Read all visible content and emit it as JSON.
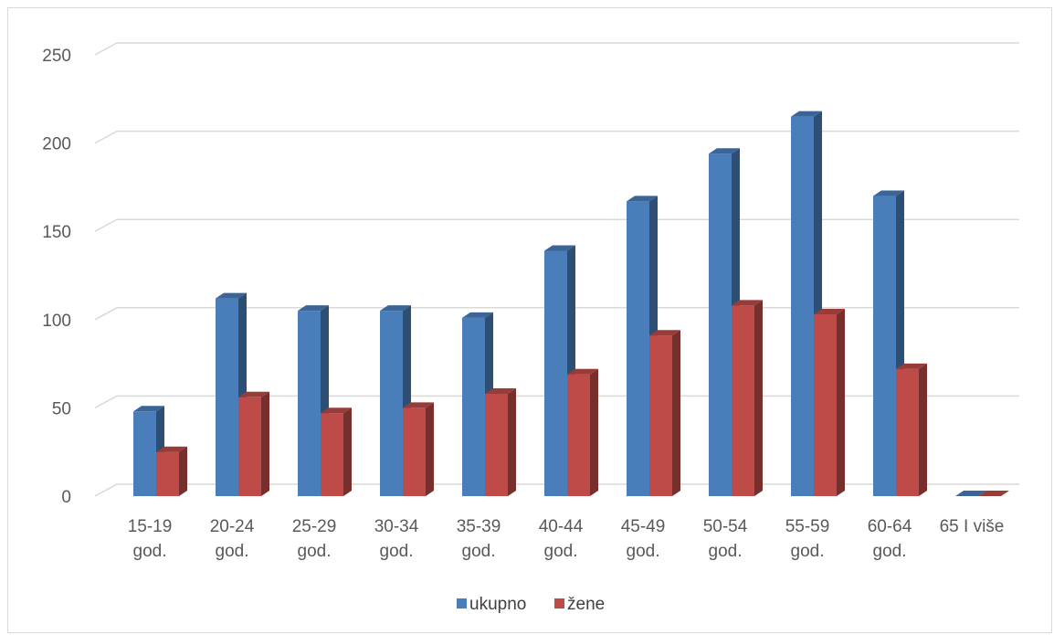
{
  "chart_data": {
    "type": "bar",
    "style": "3d-clustered-column",
    "categories": [
      [
        "15-19",
        "god."
      ],
      [
        "20-24",
        "god."
      ],
      [
        "25-29",
        "god."
      ],
      [
        "30-34",
        "god."
      ],
      [
        "35-39",
        "god."
      ],
      [
        "40-44",
        "god."
      ],
      [
        "45-49",
        "god."
      ],
      [
        "50-54",
        "god."
      ],
      [
        "55-59",
        "god."
      ],
      [
        "60-64",
        "god."
      ],
      [
        "65 I više"
      ]
    ],
    "series": [
      {
        "name": "ukupno",
        "color": "#4a7ebb",
        "values": [
          48,
          112,
          105,
          105,
          101,
          139,
          167,
          194,
          215,
          170,
          0
        ]
      },
      {
        "name": "žene",
        "color": "#be4b48",
        "values": [
          25,
          56,
          47,
          50,
          58,
          69,
          91,
          108,
          103,
          72,
          0
        ]
      }
    ],
    "title": "",
    "xlabel": "",
    "ylabel": "",
    "ylim": [
      0,
      250
    ],
    "yticks": [
      "0",
      "50",
      "100",
      "150",
      "200",
      "250"
    ],
    "grid": true,
    "legend": "bottom"
  }
}
